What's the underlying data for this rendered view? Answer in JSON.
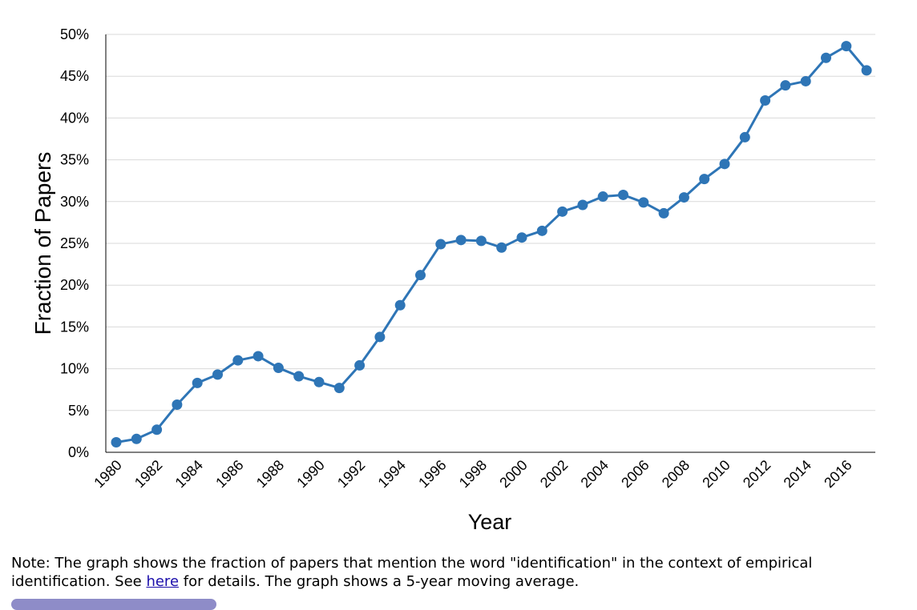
{
  "chart_data": {
    "type": "line",
    "title": "",
    "xlabel": "Year",
    "ylabel": "Fraction of Papers",
    "x": [
      1980,
      1981,
      1982,
      1983,
      1984,
      1985,
      1986,
      1987,
      1988,
      1989,
      1990,
      1991,
      1992,
      1993,
      1994,
      1995,
      1996,
      1997,
      1998,
      1999,
      2000,
      2001,
      2002,
      2003,
      2004,
      2005,
      2006,
      2007,
      2008,
      2009,
      2010,
      2011,
      2012,
      2013,
      2014,
      2015,
      2016,
      2017
    ],
    "xticks": [
      "1980",
      "1982",
      "1984",
      "1986",
      "1988",
      "1990",
      "1992",
      "1994",
      "1996",
      "1998",
      "2000",
      "2002",
      "2004",
      "2006",
      "2008",
      "2010",
      "2012",
      "2014",
      "2016"
    ],
    "series": [
      {
        "name": "Fraction of Papers",
        "color": "#2e75b6",
        "values": [
          1.2,
          1.6,
          2.7,
          5.7,
          8.3,
          9.3,
          11.0,
          11.5,
          10.1,
          9.1,
          8.4,
          7.7,
          10.4,
          13.8,
          17.6,
          21.2,
          24.9,
          25.4,
          25.3,
          24.5,
          25.7,
          26.5,
          28.8,
          29.6,
          30.6,
          30.8,
          29.9,
          28.6,
          30.5,
          32.7,
          34.5,
          37.7,
          42.1,
          43.9,
          44.4,
          47.2,
          48.6,
          45.7
        ]
      }
    ],
    "yticks": [
      "0%",
      "5%",
      "10%",
      "15%",
      "20%",
      "25%",
      "30%",
      "35%",
      "40%",
      "45%",
      "50%"
    ],
    "ylim": [
      0,
      50
    ],
    "grid": true,
    "legend": "none"
  },
  "note": {
    "text_before": "Note: The graph shows the fraction of papers that mention the word \"identification\" in the context of empirical identification. See ",
    "link_text": "here",
    "text_after": " for details. The graph shows a 5-year moving average."
  }
}
